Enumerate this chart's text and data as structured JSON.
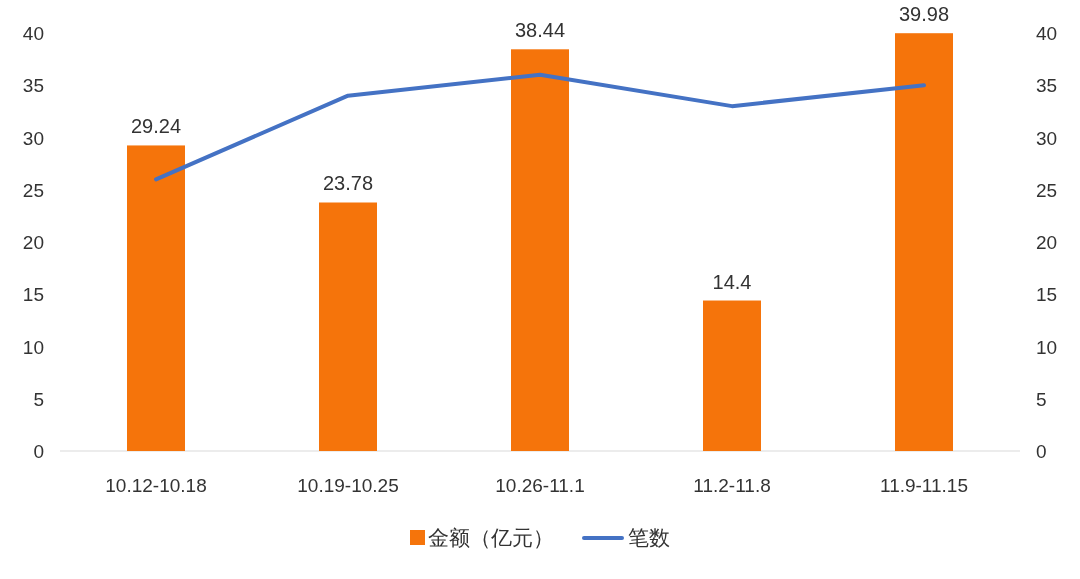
{
  "chart_data": {
    "type": "bar",
    "categories": [
      "10.12-10.18",
      "10.19-10.25",
      "10.26-11.1",
      "11.2-11.8",
      "11.9-11.15"
    ],
    "series": [
      {
        "name": "金额（亿元）",
        "color": "#f5740b",
        "values": [
          29.24,
          23.78,
          38.44,
          14.4,
          39.98
        ],
        "value_labels": [
          "29.24",
          "23.78",
          "38.44",
          "14.4",
          "39.98"
        ]
      },
      {
        "name": "笔数",
        "type": "line",
        "axis": "y2",
        "color": "#4472c4",
        "values": [
          26,
          34,
          36,
          33,
          35
        ]
      }
    ],
    "ylim": [
      0,
      40
    ],
    "yticks": [
      0,
      5,
      10,
      15,
      20,
      25,
      30,
      35,
      40
    ],
    "y2lim": [
      0,
      40
    ],
    "y2ticks": [
      0,
      5,
      10,
      15,
      20,
      25,
      30,
      35,
      40
    ],
    "legend": "bottom"
  }
}
